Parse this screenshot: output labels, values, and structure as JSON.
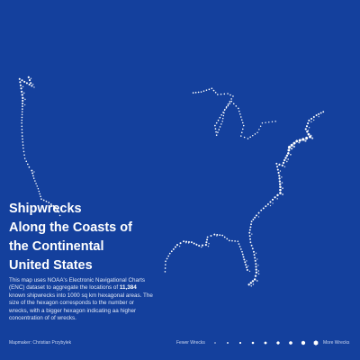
{
  "title": {
    "line1": "Shipwrecks",
    "line2": "Along the Coasts of",
    "line3": "the Continental",
    "line4": "United States"
  },
  "description": {
    "part1": "This map uses NOAA's Electronic Navigational Charts (ENC) dataset to aggregate the locations of ",
    "count": "11,384",
    "part2": " known shipwrecks into 1000 sq km hexagonal areas. The size of the hexagon corresponds to the number or wrecks, with a bigger hexagon indicating aa higher concentration of of wrecks."
  },
  "credit": "Mapmaker: Christian Przybylek",
  "legend": {
    "low_label": "Fewer Wrecks",
    "high_label": "More Wrecks",
    "levels": [
      0.1,
      0.2,
      0.3,
      0.4,
      0.5,
      0.6,
      0.7,
      0.85,
      1.0
    ]
  },
  "colors": {
    "background": "#14409d",
    "hexagon": "#ffffff"
  },
  "map": {
    "type": "hexbin",
    "region": "Continental United States coasts",
    "coasts": [
      {
        "name": "Pacific coast",
        "points": [
          {
            "lon": -123.0,
            "lat": 48.6,
            "level": 0.55
          },
          {
            "lon": -122.4,
            "lat": 47.6,
            "level": 0.5
          },
          {
            "lon": -124.7,
            "lat": 48.4,
            "level": 0.5
          },
          {
            "lon": -124.1,
            "lat": 46.2,
            "level": 0.6
          },
          {
            "lon": -124.2,
            "lat": 44.6,
            "level": 0.3
          },
          {
            "lon": -124.3,
            "lat": 43.3,
            "level": 0.3
          },
          {
            "lon": -124.2,
            "lat": 41.8,
            "level": 0.35
          },
          {
            "lon": -124.0,
            "lat": 40.4,
            "level": 0.3
          },
          {
            "lon": -123.7,
            "lat": 39.2,
            "level": 0.3
          },
          {
            "lon": -122.9,
            "lat": 38.2,
            "level": 0.35
          },
          {
            "lon": -122.4,
            "lat": 37.8,
            "level": 0.45
          },
          {
            "lon": -122.0,
            "lat": 36.9,
            "level": 0.3
          },
          {
            "lon": -121.2,
            "lat": 35.7,
            "level": 0.25
          },
          {
            "lon": -120.6,
            "lat": 34.5,
            "level": 0.35
          },
          {
            "lon": -119.2,
            "lat": 34.1,
            "level": 0.35
          },
          {
            "lon": -118.3,
            "lat": 33.7,
            "level": 0.45
          },
          {
            "lon": -117.3,
            "lat": 33.0,
            "level": 0.35
          },
          {
            "lon": -117.1,
            "lat": 32.6,
            "level": 0.3
          }
        ]
      },
      {
        "name": "Great Lakes",
        "points": [
          {
            "lon": -92.0,
            "lat": 46.8,
            "level": 0.35
          },
          {
            "lon": -90.5,
            "lat": 46.9,
            "level": 0.3
          },
          {
            "lon": -88.5,
            "lat": 47.3,
            "level": 0.35
          },
          {
            "lon": -87.4,
            "lat": 46.6,
            "level": 0.3
          },
          {
            "lon": -85.5,
            "lat": 46.7,
            "level": 0.3
          },
          {
            "lon": -84.5,
            "lat": 46.4,
            "level": 0.3
          },
          {
            "lon": -87.9,
            "lat": 43.0,
            "level": 0.35
          },
          {
            "lon": -87.6,
            "lat": 41.9,
            "level": 0.35
          },
          {
            "lon": -86.5,
            "lat": 43.5,
            "level": 0.25
          },
          {
            "lon": -86.1,
            "lat": 44.8,
            "level": 0.25
          },
          {
            "lon": -84.8,
            "lat": 45.8,
            "level": 0.35
          },
          {
            "lon": -83.5,
            "lat": 45.0,
            "level": 0.3
          },
          {
            "lon": -82.5,
            "lat": 43.0,
            "level": 0.3
          },
          {
            "lon": -83.0,
            "lat": 41.8,
            "level": 0.3
          },
          {
            "lon": -81.7,
            "lat": 41.5,
            "level": 0.3
          },
          {
            "lon": -79.9,
            "lat": 42.2,
            "level": 0.25
          },
          {
            "lon": -79.0,
            "lat": 43.3,
            "level": 0.25
          },
          {
            "lon": -76.5,
            "lat": 43.5,
            "level": 0.25
          }
        ]
      },
      {
        "name": "Atlantic coast",
        "points": [
          {
            "lon": -67.5,
            "lat": 44.6,
            "level": 0.4
          },
          {
            "lon": -68.8,
            "lat": 44.2,
            "level": 0.45
          },
          {
            "lon": -70.2,
            "lat": 43.6,
            "level": 0.5
          },
          {
            "lon": -70.8,
            "lat": 42.6,
            "level": 0.55
          },
          {
            "lon": -70.0,
            "lat": 41.7,
            "level": 0.9
          },
          {
            "lon": -71.3,
            "lat": 41.4,
            "level": 1.0
          },
          {
            "lon": -72.5,
            "lat": 41.2,
            "level": 0.85
          },
          {
            "lon": -73.9,
            "lat": 40.5,
            "level": 1.0
          },
          {
            "lon": -74.1,
            "lat": 39.8,
            "level": 0.7
          },
          {
            "lon": -74.8,
            "lat": 39.0,
            "level": 0.6
          },
          {
            "lon": -75.2,
            "lat": 38.4,
            "level": 0.55
          },
          {
            "lon": -76.3,
            "lat": 38.6,
            "level": 0.45
          },
          {
            "lon": -75.8,
            "lat": 37.2,
            "level": 0.55
          },
          {
            "lon": -75.6,
            "lat": 35.9,
            "level": 0.7
          },
          {
            "lon": -75.6,
            "lat": 35.2,
            "level": 0.75
          },
          {
            "lon": -76.6,
            "lat": 34.7,
            "level": 0.55
          },
          {
            "lon": -77.9,
            "lat": 33.9,
            "level": 0.45
          },
          {
            "lon": -79.2,
            "lat": 33.2,
            "level": 0.4
          },
          {
            "lon": -80.1,
            "lat": 32.6,
            "level": 0.45
          },
          {
            "lon": -81.0,
            "lat": 31.9,
            "level": 0.4
          },
          {
            "lon": -81.4,
            "lat": 30.6,
            "level": 0.45
          },
          {
            "lon": -81.2,
            "lat": 29.5,
            "level": 0.4
          },
          {
            "lon": -80.6,
            "lat": 28.4,
            "level": 0.45
          },
          {
            "lon": -80.2,
            "lat": 27.0,
            "level": 0.45
          },
          {
            "lon": -80.1,
            "lat": 26.0,
            "level": 0.6
          },
          {
            "lon": -80.4,
            "lat": 25.2,
            "level": 0.65
          },
          {
            "lon": -81.5,
            "lat": 24.6,
            "level": 0.6
          }
        ]
      },
      {
        "name": "Gulf coast",
        "points": [
          {
            "lon": -81.8,
            "lat": 26.3,
            "level": 0.45
          },
          {
            "lon": -82.4,
            "lat": 27.5,
            "level": 0.45
          },
          {
            "lon": -82.8,
            "lat": 28.4,
            "level": 0.35
          },
          {
            "lon": -83.6,
            "lat": 29.6,
            "level": 0.3
          },
          {
            "lon": -85.2,
            "lat": 29.7,
            "level": 0.35
          },
          {
            "lon": -86.5,
            "lat": 30.3,
            "level": 0.35
          },
          {
            "lon": -88.0,
            "lat": 30.4,
            "level": 0.45
          },
          {
            "lon": -89.3,
            "lat": 30.1,
            "level": 0.4
          },
          {
            "lon": -89.6,
            "lat": 29.2,
            "level": 0.55
          },
          {
            "lon": -90.9,
            "lat": 29.1,
            "level": 0.5
          },
          {
            "lon": -92.3,
            "lat": 29.5,
            "level": 0.45
          },
          {
            "lon": -93.8,
            "lat": 29.6,
            "level": 0.45
          },
          {
            "lon": -95.0,
            "lat": 29.2,
            "level": 0.5
          },
          {
            "lon": -96.4,
            "lat": 28.2,
            "level": 0.35
          },
          {
            "lon": -97.2,
            "lat": 27.3,
            "level": 0.35
          },
          {
            "lon": -97.3,
            "lat": 26.1,
            "level": 0.3
          }
        ]
      }
    ]
  }
}
